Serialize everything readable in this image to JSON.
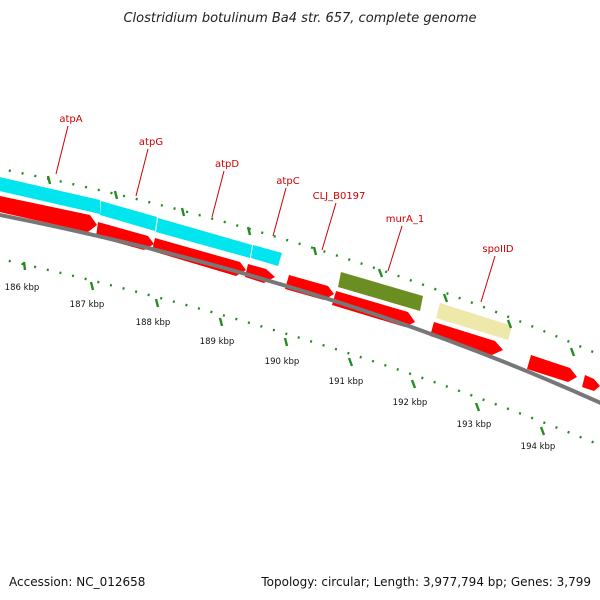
{
  "title": "Clostridium botulinum Ba4 str. 657, complete genome",
  "footer": {
    "accession": "Accession: NC_012658",
    "summary": "Topology: circular; Length: 3,977,794 bp; Genes: 3,799"
  },
  "colors": {
    "cds_forward": "#ff0000",
    "atp_operon": "#00e5ee",
    "murA_1": "#6b8e23",
    "spoIID": "#eee8aa",
    "backbone": "#808080",
    "label": "#cc0000",
    "tick": "#228b22"
  },
  "annotations": [
    {
      "name": "atpA",
      "label": "atpA"
    },
    {
      "name": "atpG",
      "label": "atpG"
    },
    {
      "name": "atpD",
      "label": "atpD"
    },
    {
      "name": "atpC",
      "label": "atpC"
    },
    {
      "name": "clj-b0197",
      "label": "CLJ_B0197"
    },
    {
      "name": "mura-1",
      "label": "murA_1"
    },
    {
      "name": "spoiid",
      "label": "spoIID"
    }
  ],
  "scale": {
    "unit": "kbp",
    "labels": [
      "186 kbp",
      "187 kbp",
      "188 kbp",
      "189 kbp",
      "190 kbp",
      "191 kbp",
      "192 kbp",
      "193 kbp",
      "194 kbp"
    ]
  },
  "feature_tracks": {
    "cyan_operon": "atp operon (cyan)",
    "red_cds": "forward CDS (red)"
  }
}
